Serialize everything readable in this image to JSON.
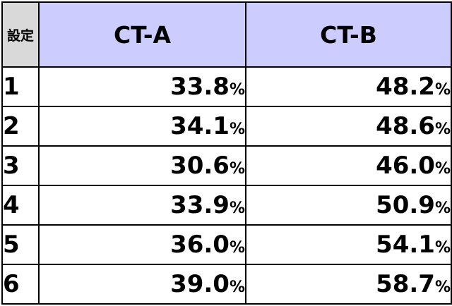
{
  "table": {
    "corner_label": "設定",
    "columns": [
      "CT-A",
      "CT-B"
    ],
    "unit": "%",
    "rows": [
      {
        "setting": "1",
        "ct_a": "33.8",
        "ct_b": "48.2"
      },
      {
        "setting": "2",
        "ct_a": "34.1",
        "ct_b": "48.6"
      },
      {
        "setting": "3",
        "ct_a": "30.6",
        "ct_b": "46.0"
      },
      {
        "setting": "4",
        "ct_a": "33.9",
        "ct_b": "50.9"
      },
      {
        "setting": "5",
        "ct_a": "36.0",
        "ct_b": "54.1"
      },
      {
        "setting": "6",
        "ct_a": "39.0",
        "ct_b": "58.7"
      }
    ]
  }
}
